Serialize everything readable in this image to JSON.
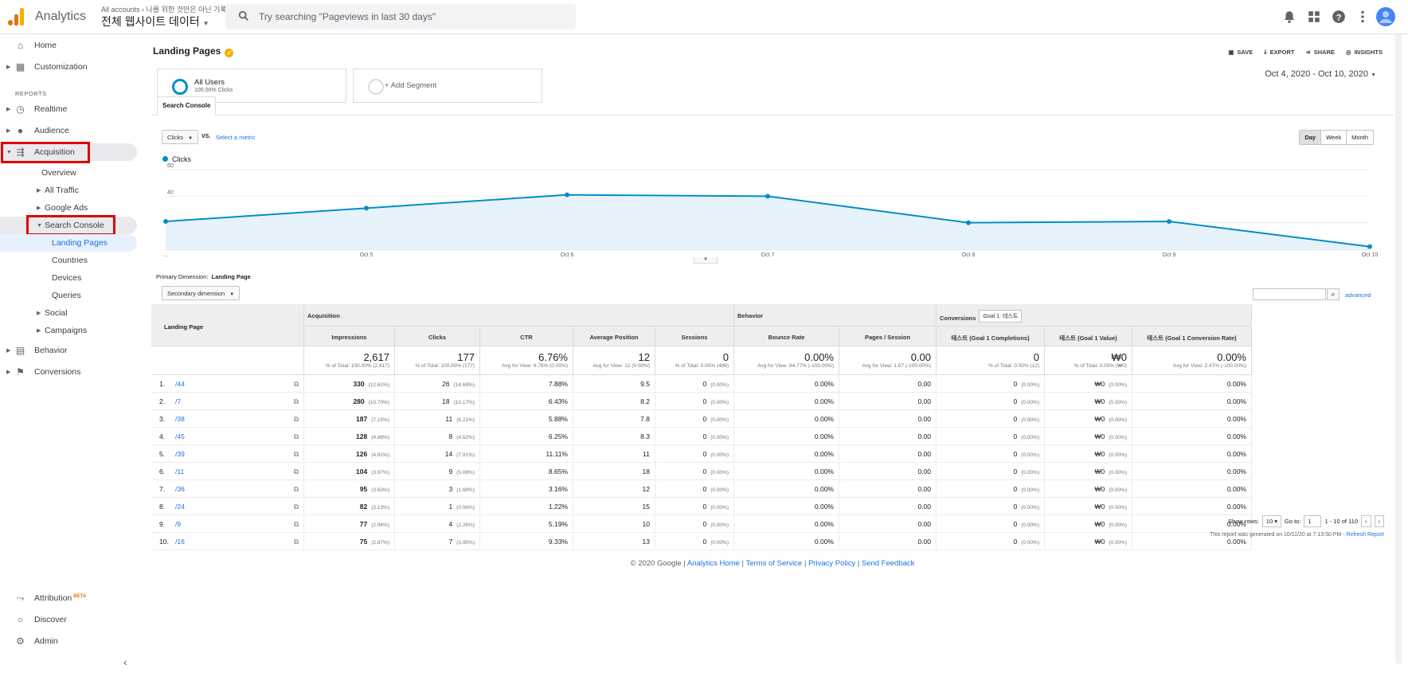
{
  "topbar": {
    "app_name": "Analytics",
    "breadcrumb": "All accounts › 나를 위한 것만은 아닌 기록",
    "property": "전체 웹사이트 데이터",
    "search_placeholder": "Try searching \"Pageviews in last 30 days\""
  },
  "sidebar": {
    "home": "Home",
    "customization": "Customization",
    "reports_label": "REPORTS",
    "realtime": "Realtime",
    "audience": "Audience",
    "acquisition": "Acquisition",
    "overview": "Overview",
    "all_traffic": "All Traffic",
    "google_ads": "Google Ads",
    "search_console": "Search Console",
    "landing_pages": "Landing Pages",
    "countries": "Countries",
    "devices": "Devices",
    "queries": "Queries",
    "social": "Social",
    "campaigns": "Campaigns",
    "behavior": "Behavior",
    "conversions": "Conversions",
    "attribution": "Attribution",
    "attribution_badge": "BETA",
    "discover": "Discover",
    "admin": "Admin"
  },
  "report": {
    "title": "Landing Pages",
    "actions": {
      "save": "SAVE",
      "export": "EXPORT",
      "share": "SHARE",
      "insights": "INSIGHTS"
    },
    "segment_all_users": "All Users",
    "segment_all_users_sub": "100.00% Clicks",
    "add_segment": "+ Add Segment",
    "date_range": "Oct 4, 2020 - Oct 10, 2020",
    "tab": "Search Console",
    "metric_select": "Clicks",
    "vs": "VS.",
    "select_metric": "Select a metric",
    "granularity": [
      "Day",
      "Week",
      "Month"
    ],
    "legend": "Clicks",
    "primary_dimension_label": "Primary Dimension:",
    "primary_dimension_value": "Landing Page",
    "secondary_dimension": "Secondary dimension",
    "advanced": "advanced"
  },
  "chart_data": {
    "type": "area",
    "series": [
      {
        "name": "Clicks",
        "values": [
          21,
          31,
          41,
          40,
          20,
          21,
          2
        ]
      }
    ],
    "categories": [
      "...",
      "Oct 5",
      "Oct 6",
      "Oct 7",
      "Oct 8",
      "Oct 9",
      "Oct 10"
    ],
    "y_ticks": [
      "60",
      "40",
      "20"
    ],
    "ylim": [
      0,
      60
    ],
    "color": "#058dc7"
  },
  "table": {
    "group_headers": {
      "acquisition": "Acquisition",
      "behavior": "Behavior",
      "conversions": "Conversions",
      "goal_select": "Goal 1: 테스트"
    },
    "dim_header": "Landing Page",
    "columns": [
      "Impressions",
      "Clicks",
      "CTR",
      "Average Position",
      "Sessions",
      "Bounce Rate",
      "Pages / Session",
      "테스트 (Goal 1 Completions)",
      "테스트 (Goal 1 Value)",
      "테스트 (Goal 1 Conversion Rate)"
    ],
    "totals": [
      {
        "big": "2,617",
        "sm": "% of Total: 100.00% (2,617)"
      },
      {
        "big": "177",
        "sm": "% of Total: 100.00% (177)"
      },
      {
        "big": "6.76%",
        "sm": "Avg for View: 6.76% (0.00%)"
      },
      {
        "big": "12",
        "sm": "Avg for View: 12 (0.00%)"
      },
      {
        "big": "0",
        "sm": "% of Total: 0.00% (486)"
      },
      {
        "big": "0.00%",
        "sm": "Avg for View: 84.77% (-100.00%)"
      },
      {
        "big": "0.00",
        "sm": "Avg for View: 1.67 (-100.00%)"
      },
      {
        "big": "0",
        "sm": "% of Total: 0.00% (12)"
      },
      {
        "big": "₩0",
        "sm": "% of Total: 0.00% (₩0)"
      },
      {
        "big": "0.00%",
        "sm": "Avg for View: 2.47% (-100.00%)"
      }
    ],
    "rows": [
      {
        "idx": "1.",
        "page": "/44",
        "imp": "330",
        "imp_p": "(12.61%)",
        "clk": "26",
        "clk_p": "(14.69%)",
        "ctr": "7.88%",
        "pos": "9.5"
      },
      {
        "idx": "2.",
        "page": "/7",
        "imp": "280",
        "imp_p": "(10.70%)",
        "clk": "18",
        "clk_p": "(10.17%)",
        "ctr": "6.43%",
        "pos": "8.2"
      },
      {
        "idx": "3.",
        "page": "/38",
        "imp": "187",
        "imp_p": "(7.15%)",
        "clk": "11",
        "clk_p": "(6.21%)",
        "ctr": "5.88%",
        "pos": "7.8"
      },
      {
        "idx": "4.",
        "page": "/45",
        "imp": "128",
        "imp_p": "(4.89%)",
        "clk": "8",
        "clk_p": "(4.52%)",
        "ctr": "6.25%",
        "pos": "8.3"
      },
      {
        "idx": "5.",
        "page": "/39",
        "imp": "126",
        "imp_p": "(4.81%)",
        "clk": "14",
        "clk_p": "(7.91%)",
        "ctr": "11.11%",
        "pos": "11"
      },
      {
        "idx": "6.",
        "page": "/11",
        "imp": "104",
        "imp_p": "(3.97%)",
        "clk": "9",
        "clk_p": "(5.08%)",
        "ctr": "8.65%",
        "pos": "18"
      },
      {
        "idx": "7.",
        "page": "/36",
        "imp": "95",
        "imp_p": "(3.63%)",
        "clk": "3",
        "clk_p": "(1.69%)",
        "ctr": "3.16%",
        "pos": "12"
      },
      {
        "idx": "8.",
        "page": "/24",
        "imp": "82",
        "imp_p": "(3.13%)",
        "clk": "1",
        "clk_p": "(0.56%)",
        "ctr": "1.22%",
        "pos": "15"
      },
      {
        "idx": "9.",
        "page": "/9",
        "imp": "77",
        "imp_p": "(2.94%)",
        "clk": "4",
        "clk_p": "(2.26%)",
        "ctr": "5.19%",
        "pos": "10"
      },
      {
        "idx": "10.",
        "page": "/16",
        "imp": "75",
        "imp_p": "(2.87%)",
        "clk": "7",
        "clk_p": "(3.95%)",
        "ctr": "9.33%",
        "pos": "13"
      }
    ],
    "zero_values": {
      "sessions": "0",
      "sessions_p": "(0.00%)",
      "bounce": "0.00%",
      "pps": "0.00",
      "comp": "0",
      "comp_p": "(0.00%)",
      "value": "₩0",
      "value_p": "(0.00%)",
      "rate": "0.00%"
    }
  },
  "pager": {
    "show_rows_label": "Show rows:",
    "show_rows": "10",
    "goto_label": "Go to:",
    "goto": "1",
    "range": "1 - 10 of 110"
  },
  "generated": "This report was generated on 10/11/20 at 7:13:50 PM - ",
  "refresh": "Refresh Report",
  "footer": {
    "copyright": "© 2020 Google | ",
    "links": [
      "Analytics Home",
      "Terms of Service",
      "Privacy Policy",
      "Send Feedback"
    ]
  }
}
